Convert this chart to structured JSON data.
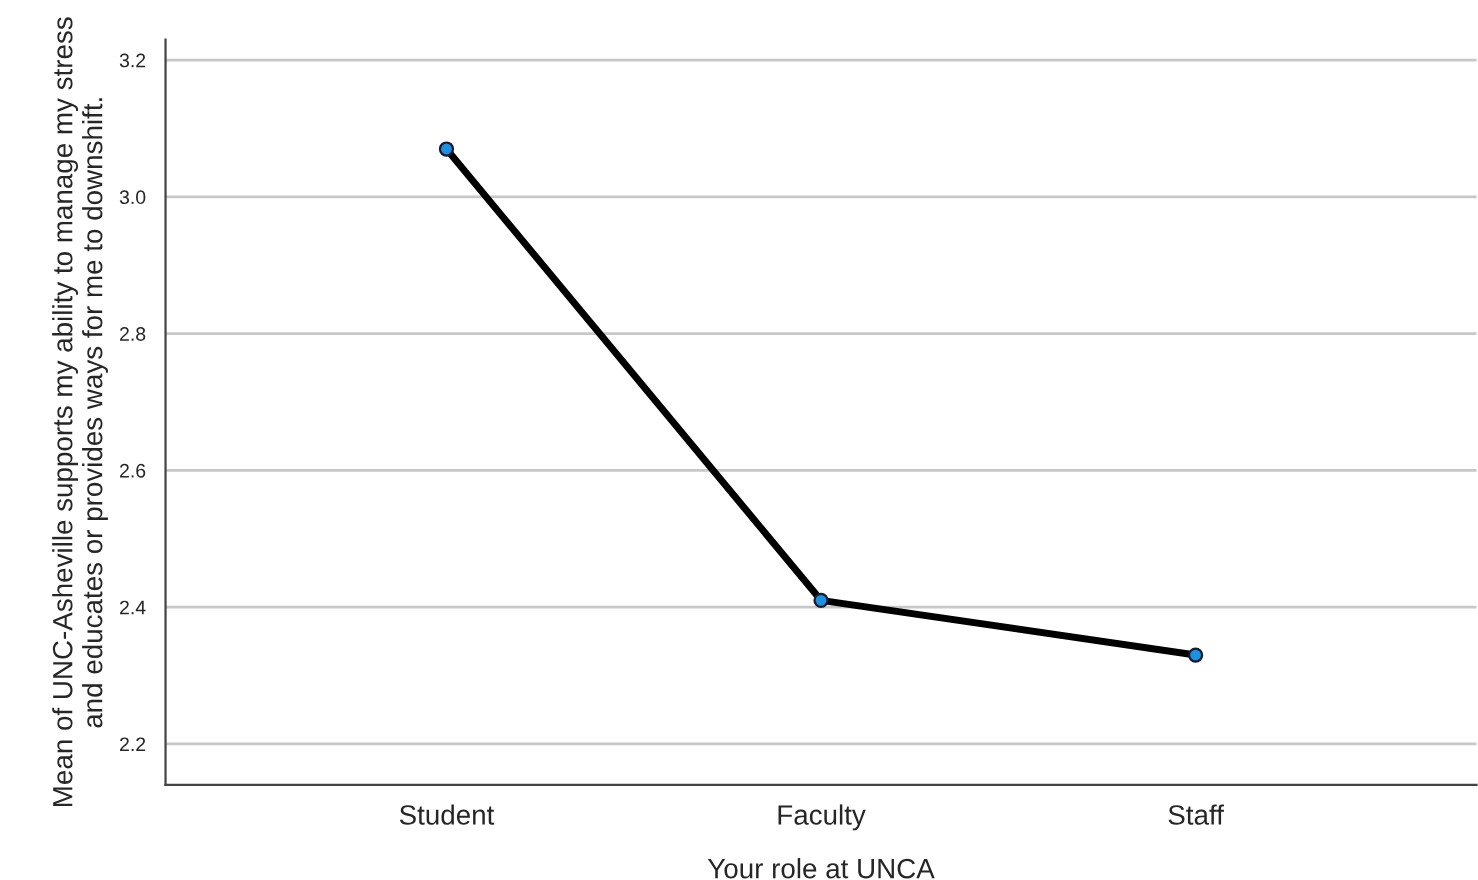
{
  "chart_data": {
    "type": "line",
    "xlabel": "Your role at UNCA",
    "ylabel": "Mean of UNC-Asheville supports my ability to manage my stress and educates or provides ways for me to downshift.",
    "categories": [
      "Student",
      "Faculty",
      "Staff"
    ],
    "series": [
      {
        "color": "#000000",
        "values": [
          3.07,
          2.41,
          2.33
        ]
      }
    ],
    "ylim": [
      2.14,
      3.23
    ],
    "yticks": [
      {
        "value": 2.2,
        "label": "2.2"
      },
      {
        "value": 2.4,
        "label": "2.4"
      },
      {
        "value": 2.6,
        "label": "2.6"
      },
      {
        "value": 2.8,
        "label": "2.8"
      },
      {
        "value": 3.0,
        "label": "3.0"
      },
      {
        "value": 3.2,
        "label": "3.2"
      }
    ],
    "grid": "y",
    "marker": "circle",
    "line_style": "solid",
    "legend": false
  }
}
